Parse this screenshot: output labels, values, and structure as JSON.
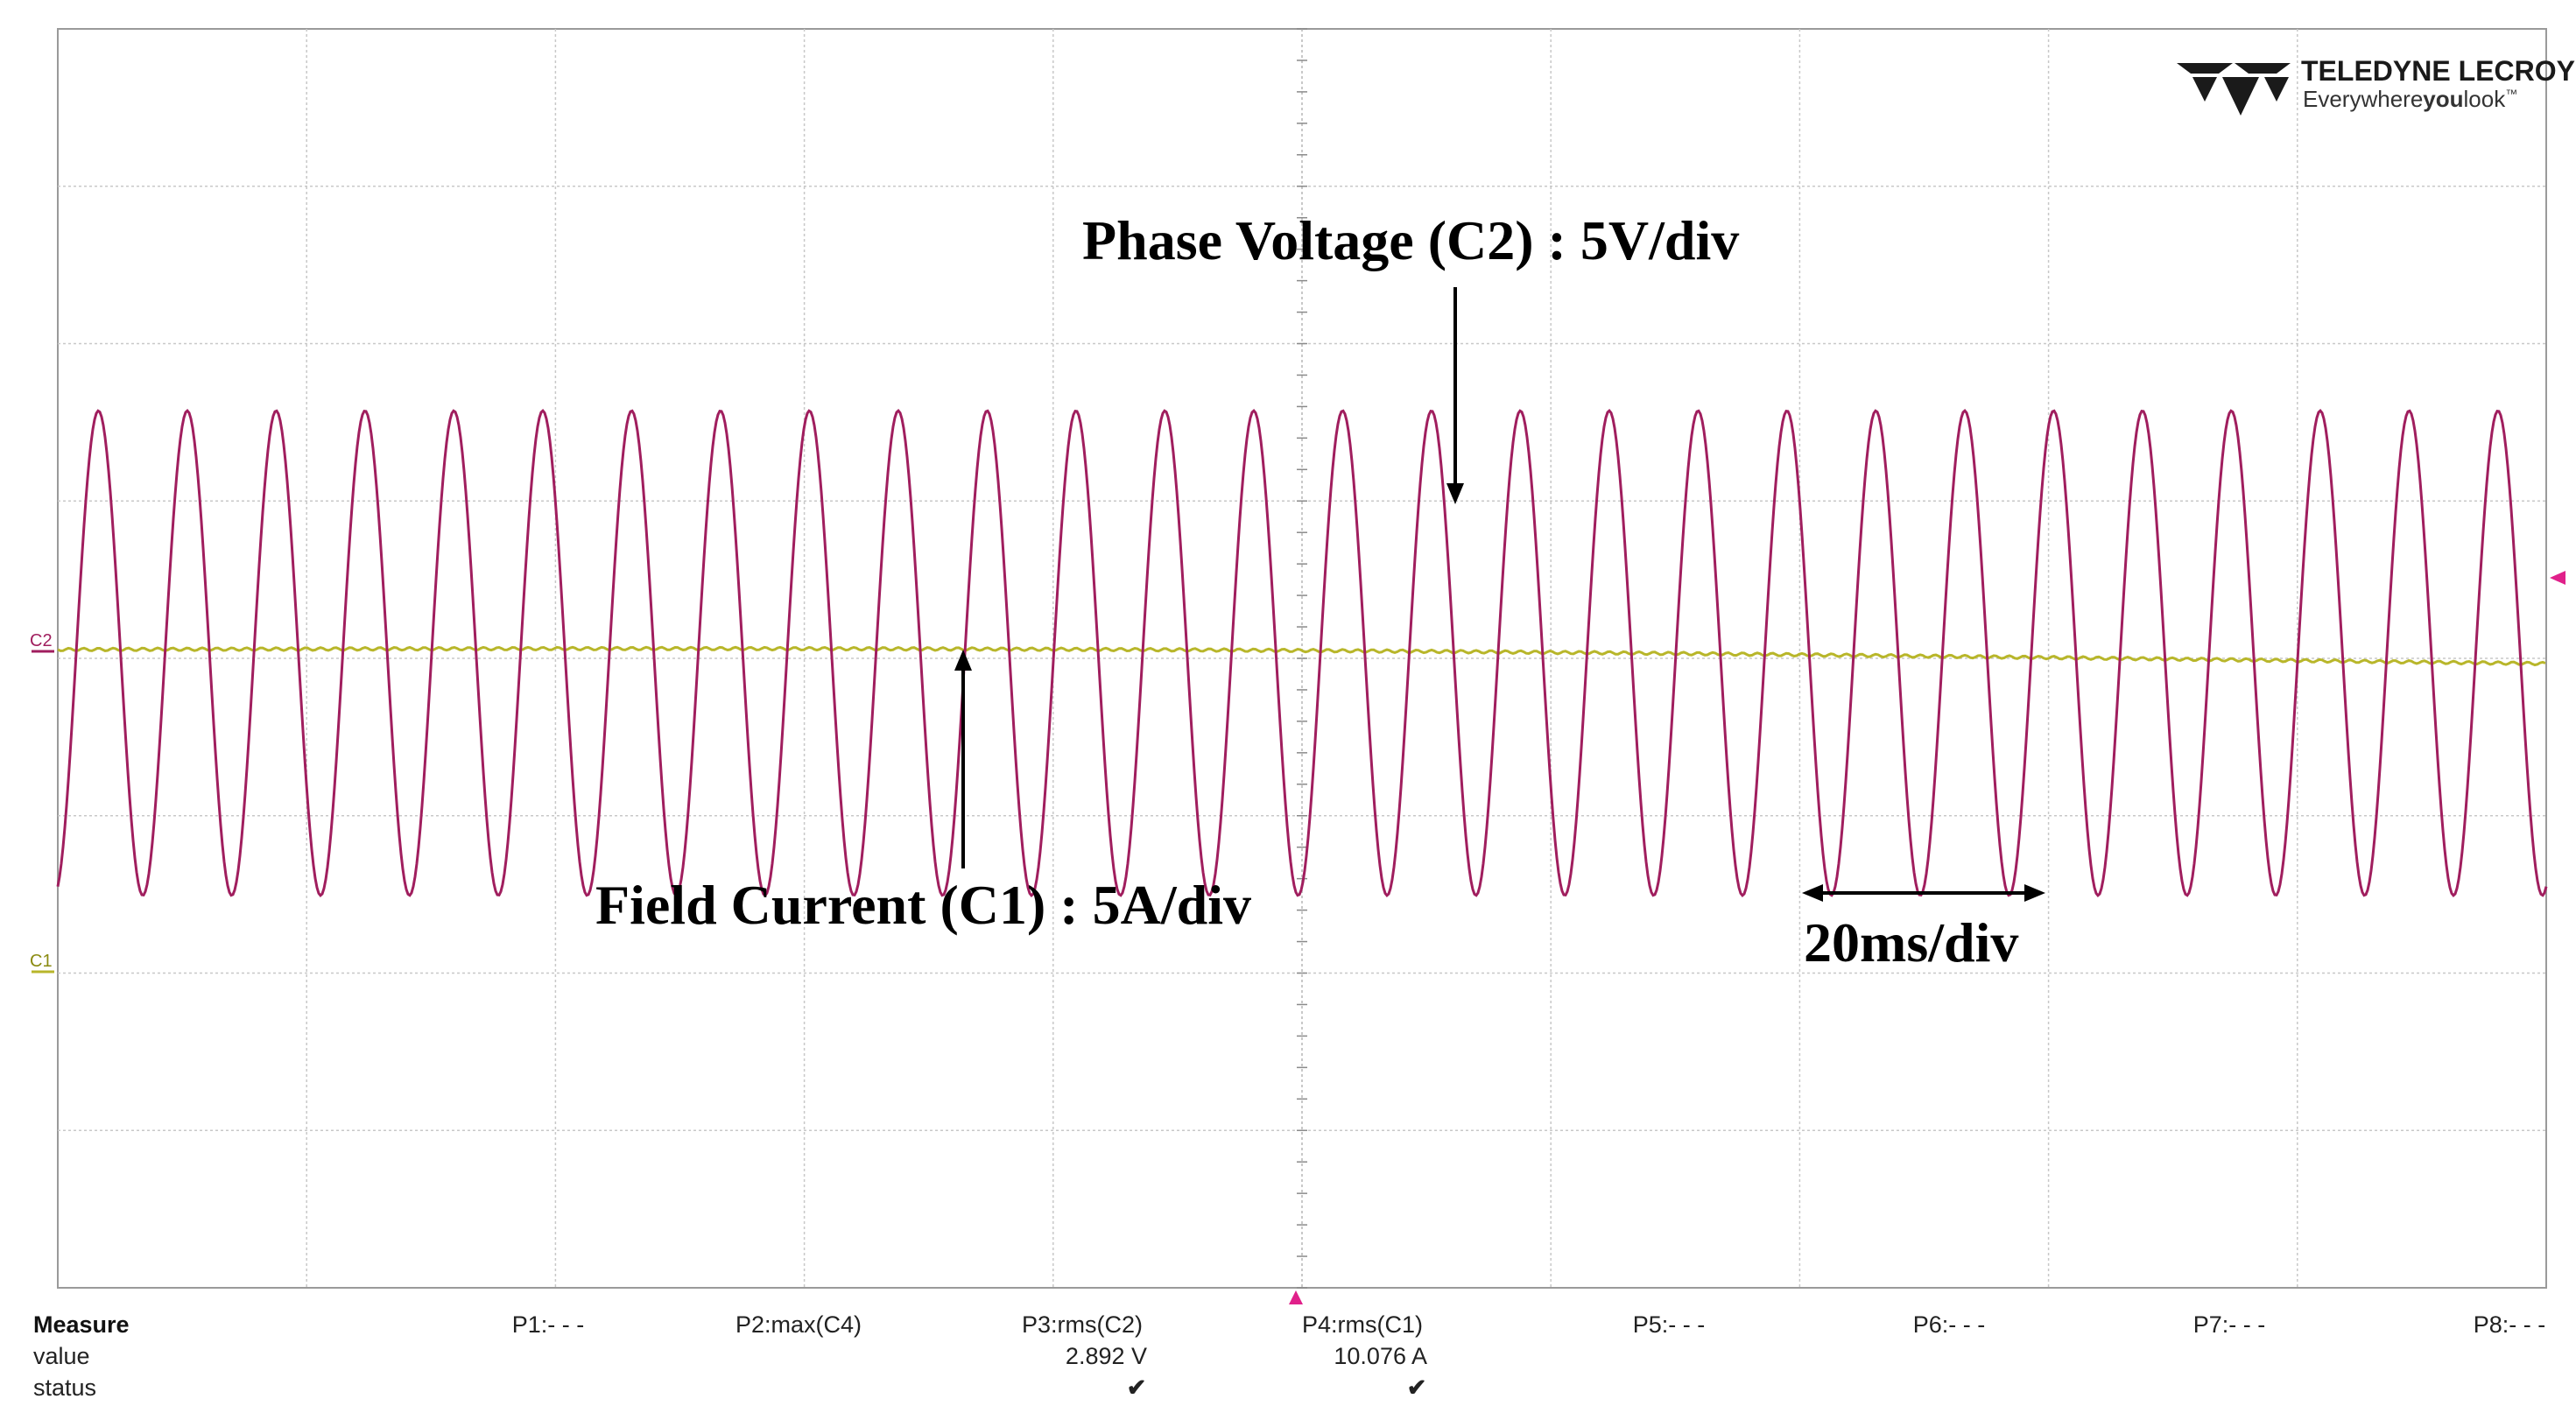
{
  "brand": {
    "name": "TELEDYNE LECROY",
    "tagline_prefix": "Everywhere",
    "tagline_bold": "you",
    "tagline_suffix": "look",
    "tm": "™"
  },
  "annotations": {
    "phase_voltage": "Phase Voltage (C2) : 5V/div",
    "field_current": "Field Current  (C1) : 5A/div",
    "timebase": "20ms/div"
  },
  "channel_markers": {
    "c2": "C2",
    "c1": "C1"
  },
  "colors": {
    "phase_voltage_trace": "#a01e5e",
    "field_current_trace": "#b8b62a",
    "grid": "#c8c8c8",
    "trigger_marker": "#e0208a"
  },
  "measure": {
    "header_label": "Measure",
    "row_labels": [
      "value",
      "status"
    ],
    "params": [
      {
        "label": "P1:- - -",
        "value": "",
        "status": ""
      },
      {
        "label": "P2:max(C4)",
        "value": "",
        "status": ""
      },
      {
        "label": "P3:rms(C2)",
        "value": "2.892 V",
        "status": "✔"
      },
      {
        "label": "P4:rms(C1)",
        "value": "10.076 A",
        "status": "✔"
      },
      {
        "label": "P5:- - -",
        "value": "",
        "status": ""
      },
      {
        "label": "P6:- - -",
        "value": "",
        "status": ""
      },
      {
        "label": "P7:- - -",
        "value": "",
        "status": ""
      },
      {
        "label": "P8:- - -",
        "value": "",
        "status": ""
      }
    ]
  },
  "waveforms": {
    "phase_voltage": {
      "type": "sine",
      "cycles_visible": 28,
      "amplitude_div": 1.75,
      "offset_div": 0.0,
      "rms_value": "2.892 V"
    },
    "field_current": {
      "type": "dc_with_ripple",
      "offset_div": 0.0,
      "rms_value": "10.076 A"
    }
  }
}
